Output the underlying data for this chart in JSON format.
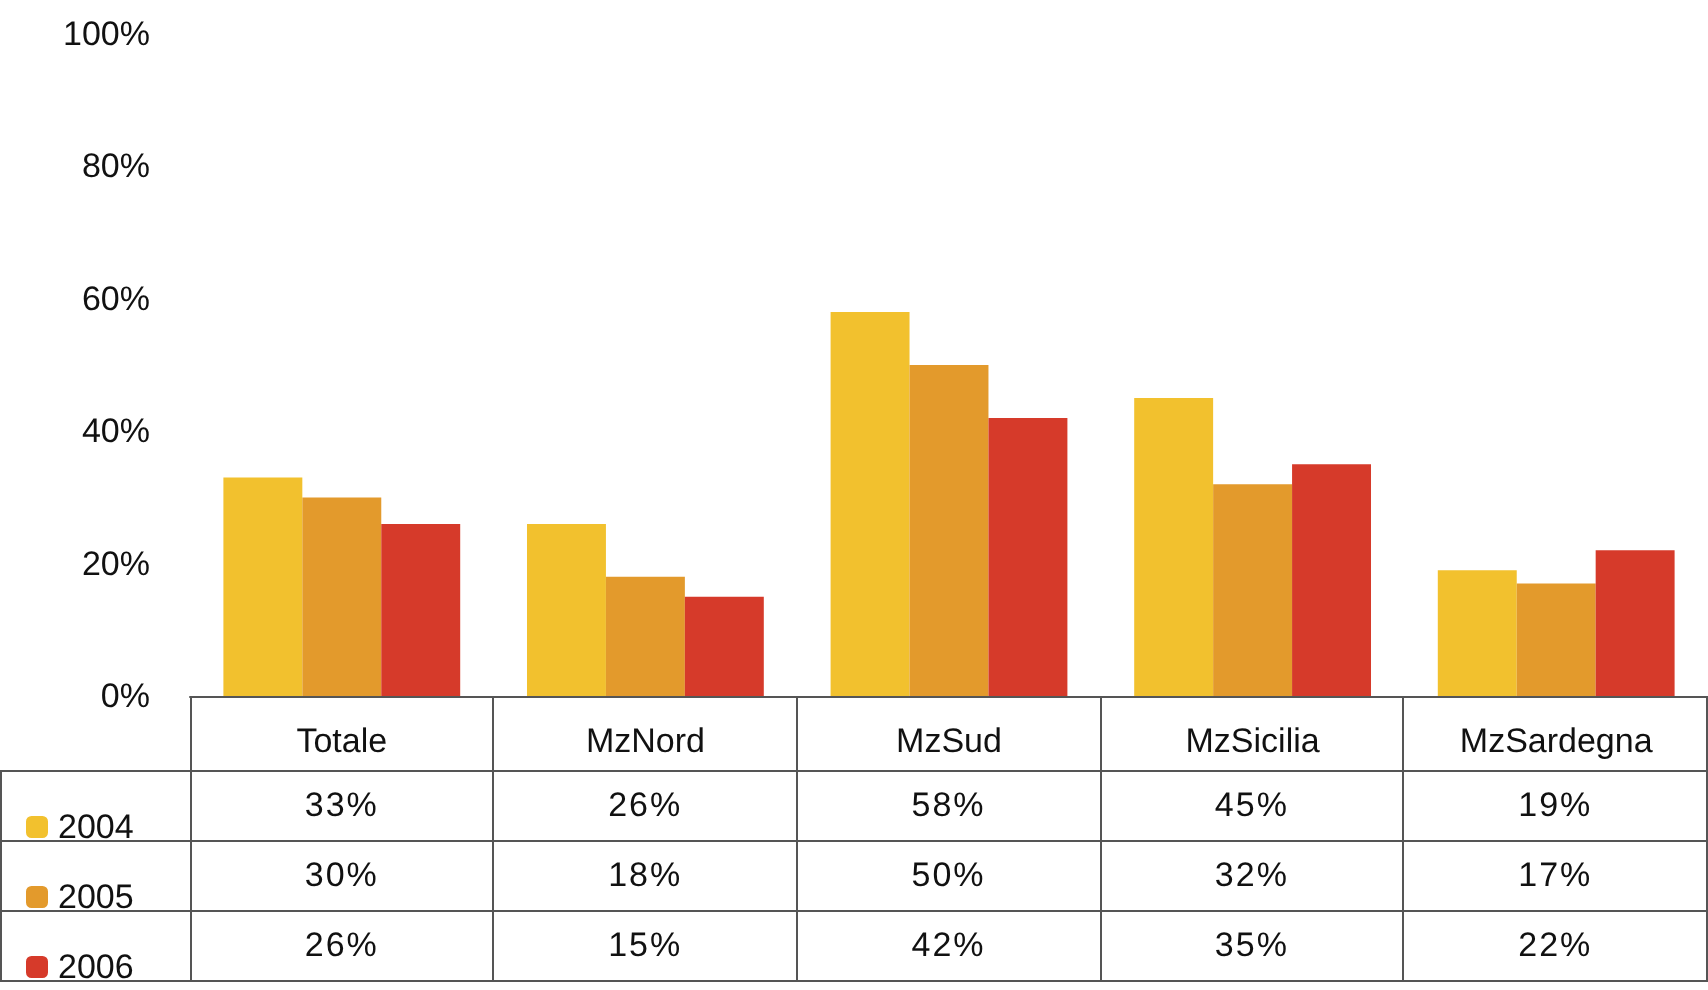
{
  "chart_data": {
    "type": "bar",
    "categories": [
      "Totale",
      "MzNord",
      "MzSud",
      "MzSicilia",
      "MzSardegna"
    ],
    "series": [
      {
        "name": "2004",
        "color": "#f2c12e",
        "values": [
          33,
          26,
          58,
          45,
          19
        ],
        "value_labels": [
          "33%",
          "26%",
          "58%",
          "45%",
          "19%"
        ]
      },
      {
        "name": "2005",
        "color": "#e39a2c",
        "values": [
          30,
          18,
          50,
          32,
          17
        ],
        "value_labels": [
          "30%",
          "18%",
          "50%",
          "32%",
          "17%"
        ]
      },
      {
        "name": "2006",
        "color": "#d63a2a",
        "values": [
          26,
          15,
          42,
          35,
          22
        ],
        "value_labels": [
          "26%",
          "15%",
          "42%",
          "35%",
          "22%"
        ]
      }
    ],
    "ylim": [
      0,
      100
    ],
    "yticks": [
      {
        "value": 0,
        "label": "0%"
      },
      {
        "value": 20,
        "label": "20%"
      },
      {
        "value": 40,
        "label": "40%"
      },
      {
        "value": 60,
        "label": "60%"
      },
      {
        "value": 80,
        "label": "80%"
      },
      {
        "value": 100,
        "label": "100%"
      }
    ],
    "grid": false,
    "legend": "bottom left"
  }
}
